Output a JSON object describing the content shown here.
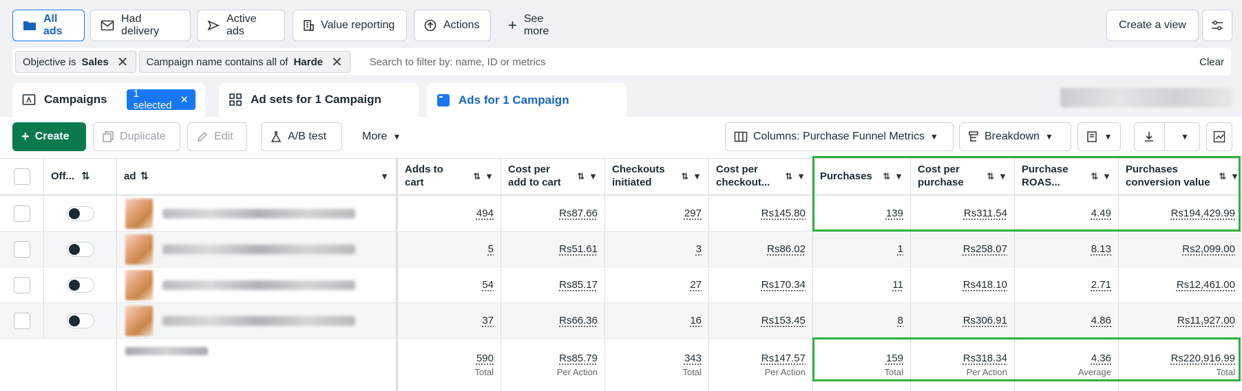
{
  "viewbar": {
    "buttons": [
      {
        "label": "All ads",
        "icon": "folder-icon"
      },
      {
        "label": "Had delivery",
        "icon": "envelope-icon"
      },
      {
        "label": "Active ads",
        "icon": "send-icon"
      },
      {
        "label": "Value reporting",
        "icon": "building-icon"
      },
      {
        "label": "Actions",
        "icon": "upload-circle-icon"
      },
      {
        "label": "See more",
        "icon": "plus-icon"
      }
    ],
    "create_view": "Create a view",
    "settings_icon": "sliders-icon"
  },
  "filters": {
    "chips": [
      {
        "prefix": "Objective is",
        "value": "Sales"
      },
      {
        "prefix": "Campaign name contains all of",
        "value": "Harde"
      }
    ],
    "placeholder": "Search to filter by: name, ID or metrics",
    "clear": "Clear"
  },
  "tabs": {
    "campaigns": "Campaigns",
    "selected": "1 selected",
    "adsets": "Ad sets for 1 Campaign",
    "ads": "Ads for 1 Campaign"
  },
  "toolbar": {
    "create": "Create",
    "duplicate": "Duplicate",
    "edit": "Edit",
    "abtest": "A/B test",
    "more": "More",
    "columns": "Columns: Purchase Funnel Metrics",
    "breakdown": "Breakdown"
  },
  "table": {
    "headers": {
      "off": "Off...",
      "ad": "ad",
      "adds_to_cart_1": "Adds to",
      "adds_to_cart_2": "cart",
      "cpatc_1": "Cost per",
      "cpatc_2": "add to cart",
      "checkouts_1": "Checkouts",
      "checkouts_2": "initiated",
      "cpco_1": "Cost per",
      "cpco_2": "checkout...",
      "purchases": "Purchases",
      "cpp_1": "Cost per",
      "cpp_2": "purchase",
      "roas_1": "Purchase",
      "roas_2": "ROAS...",
      "pcv_1": "Purchases",
      "pcv_2": "conversion value"
    },
    "rows": [
      {
        "atc": "494",
        "cpatc": "Rs87.66",
        "co": "297",
        "cpco": "Rs145.80",
        "pur": "139",
        "cpp": "Rs311.54",
        "roas": "4.49",
        "pcv": "Rs194,429.99"
      },
      {
        "atc": "5",
        "cpatc": "Rs51.61",
        "co": "3",
        "cpco": "Rs86.02",
        "pur": "1",
        "cpp": "Rs258.07",
        "roas": "8.13",
        "pcv": "Rs2,099.00"
      },
      {
        "atc": "54",
        "cpatc": "Rs85.17",
        "co": "27",
        "cpco": "Rs170.34",
        "pur": "11",
        "cpp": "Rs418.10",
        "roas": "2.71",
        "pcv": "Rs12,461.00"
      },
      {
        "atc": "37",
        "cpatc": "Rs66.36",
        "co": "16",
        "cpco": "Rs153.45",
        "pur": "8",
        "cpp": "Rs306.91",
        "roas": "4.86",
        "pcv": "Rs11,927.00"
      }
    ],
    "totals": {
      "atc": "590",
      "atc_sub": "Total",
      "cpatc": "Rs85.79",
      "cpatc_sub": "Per Action",
      "co": "343",
      "co_sub": "Total",
      "cpco": "Rs147.57",
      "cpco_sub": "Per Action",
      "pur": "159",
      "pur_sub": "Total",
      "cpp": "Rs318.34",
      "cpp_sub": "Per Action",
      "roas": "4.36",
      "roas_sub": "Average",
      "pcv": "Rs220,916.99",
      "pcv_sub": "Total"
    }
  },
  "colors": {
    "accent": "#1877f2",
    "create": "#0a7a4c",
    "highlight": "#2eaf3c"
  }
}
